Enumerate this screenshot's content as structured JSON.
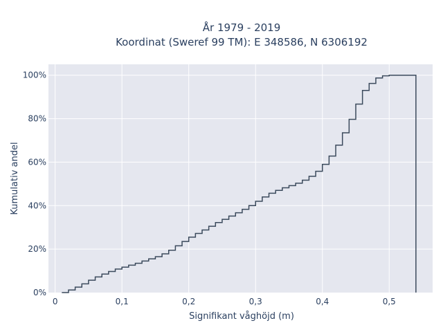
{
  "colors": {
    "plot_background": "#e5e7ef",
    "grid": "#ffffff",
    "line": "#3b4a5c",
    "text": "#2a3f5f",
    "page_background": "#ffffff"
  },
  "chart_data": {
    "type": "line",
    "line_shape": "step",
    "title": "År 1979 - 2019",
    "subtitle": "Koordinat (Sweref 99 TM): E 348586, N 6306192",
    "xlabel": "Signifikant våghöjd (m)",
    "ylabel": "Kumulativ andel",
    "xlim": [
      -0.01,
      0.565
    ],
    "ylim": [
      0,
      1.05
    ],
    "grid": true,
    "legend": "none",
    "x_ticks": [
      {
        "value": 0,
        "label": "0"
      },
      {
        "value": 0.1,
        "label": "0,1"
      },
      {
        "value": 0.2,
        "label": "0,2"
      },
      {
        "value": 0.3,
        "label": "0,3"
      },
      {
        "value": 0.4,
        "label": "0,4"
      },
      {
        "value": 0.5,
        "label": "0,5"
      }
    ],
    "y_ticks": [
      {
        "value": 0,
        "label": "0%"
      },
      {
        "value": 0.2,
        "label": "20%"
      },
      {
        "value": 0.4,
        "label": "40%"
      },
      {
        "value": 0.6,
        "label": "60%"
      },
      {
        "value": 0.8,
        "label": "80%"
      },
      {
        "value": 1.0,
        "label": "100%"
      }
    ],
    "series": [
      {
        "x": [
          0.01,
          0.02,
          0.03,
          0.04,
          0.05,
          0.06,
          0.07,
          0.08,
          0.09,
          0.1,
          0.11,
          0.12,
          0.13,
          0.14,
          0.15,
          0.16,
          0.17,
          0.18,
          0.19,
          0.2,
          0.21,
          0.22,
          0.23,
          0.24,
          0.25,
          0.26,
          0.27,
          0.28,
          0.29,
          0.3,
          0.31,
          0.32,
          0.33,
          0.34,
          0.35,
          0.36,
          0.37,
          0.38,
          0.39,
          0.4,
          0.41,
          0.42,
          0.43,
          0.44,
          0.45,
          0.46,
          0.47,
          0.48,
          0.49,
          0.5,
          0.54
        ],
        "y": [
          0.0,
          0.012,
          0.025,
          0.04,
          0.057,
          0.072,
          0.085,
          0.097,
          0.108,
          0.117,
          0.126,
          0.135,
          0.145,
          0.155,
          0.165,
          0.178,
          0.195,
          0.215,
          0.235,
          0.255,
          0.272,
          0.288,
          0.305,
          0.322,
          0.337,
          0.352,
          0.367,
          0.383,
          0.4,
          0.42,
          0.44,
          0.457,
          0.47,
          0.482,
          0.492,
          0.503,
          0.517,
          0.535,
          0.558,
          0.59,
          0.628,
          0.678,
          0.735,
          0.797,
          0.867,
          0.93,
          0.962,
          0.987,
          0.997,
          1.0,
          1.0
        ]
      }
    ]
  }
}
